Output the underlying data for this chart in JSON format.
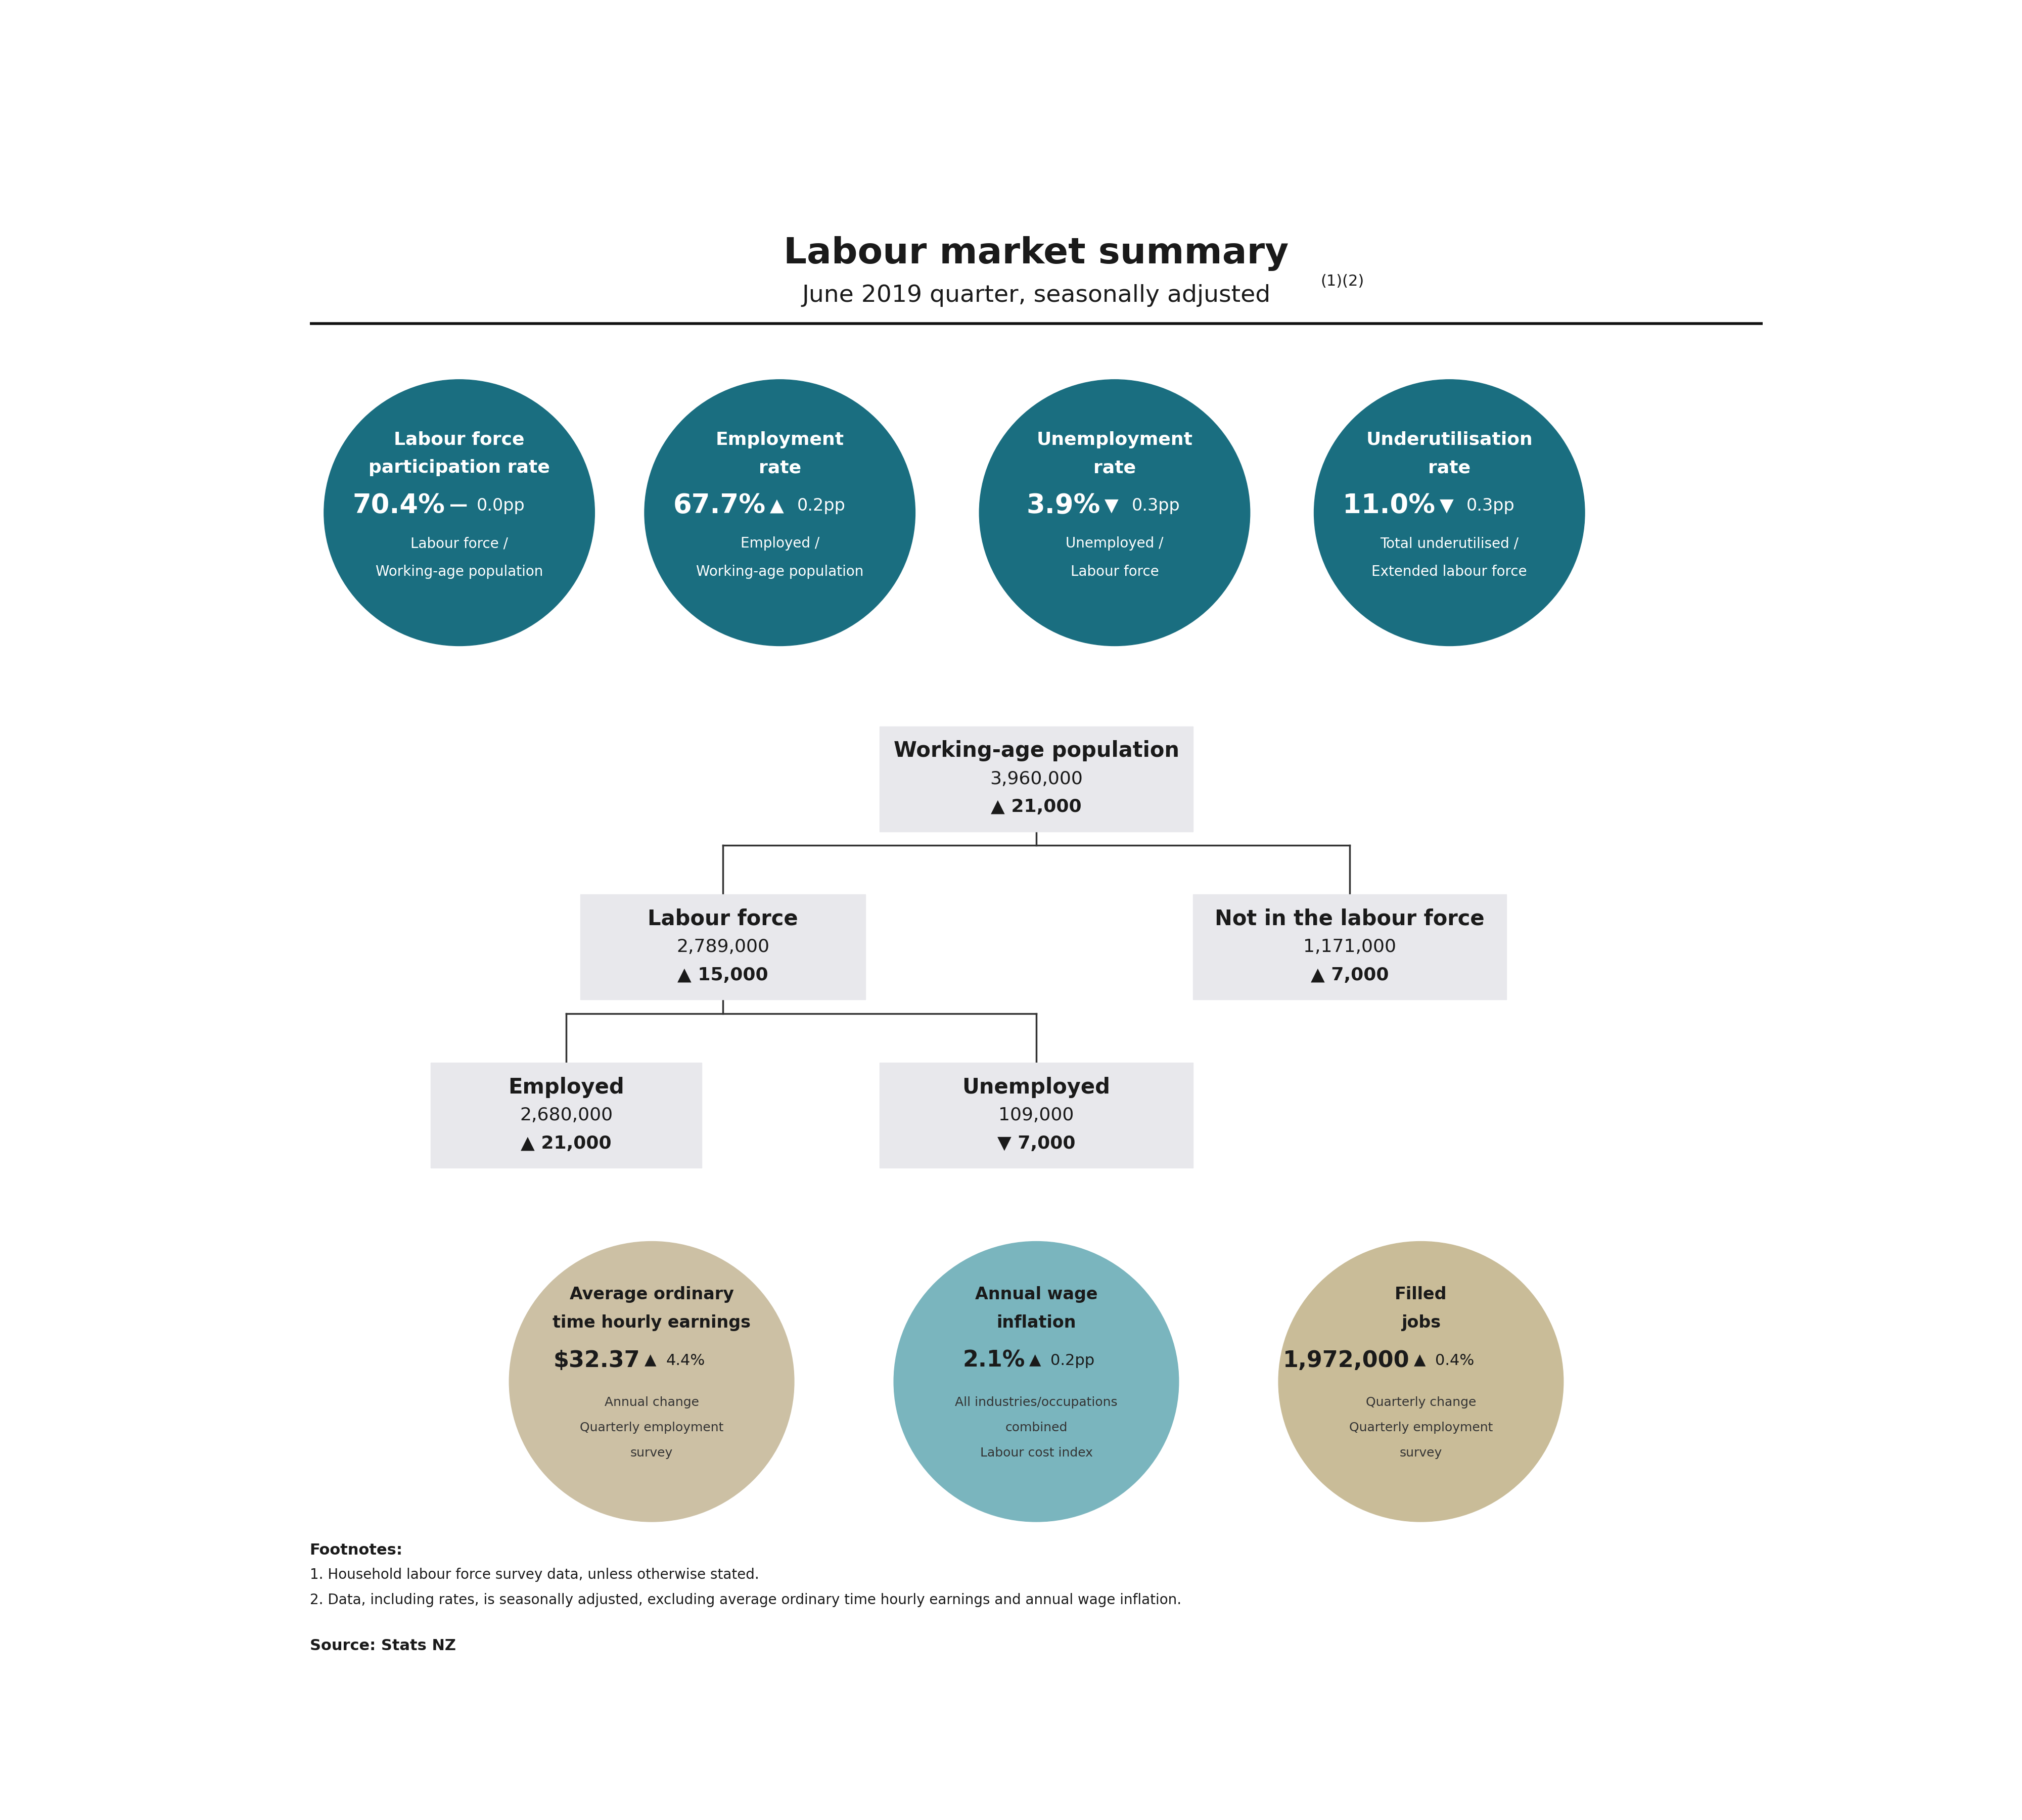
{
  "title": "Labour market summary",
  "subtitle": "June 2019 quarter, seasonally adjusted",
  "subtitle_sup": "(1)(2)",
  "bg_color": "#ffffff",
  "teal_color": "#1a6e80",
  "box_color": "#e8e8ec",
  "line_color": "#111111",
  "text_dark": "#1a1a1a",
  "footnote_bold": "Footnotes:",
  "footnotes": [
    "1. Household labour force survey data, unless otherwise stated.",
    "2. Data, including rates, is seasonally adjusted, excluding average ordinary time hourly earnings and annual wage inflation."
  ],
  "source": "Source: Stats NZ",
  "circles": [
    {
      "title_line1": "Labour force",
      "title_line2": "participation rate",
      "rate": "70.4%",
      "change_symbol": "—",
      "change_value": "0.0pp",
      "sub1": "Labour force /",
      "sub2": "Working-age population"
    },
    {
      "title_line1": "Employment",
      "title_line2": "rate",
      "rate": "67.7%",
      "change_symbol": "▲",
      "change_value": "0.2pp",
      "sub1": "Employed /",
      "sub2": "Working-age population"
    },
    {
      "title_line1": "Unemployment",
      "title_line2": "rate",
      "rate": "3.9%",
      "change_symbol": "▼",
      "change_value": "0.3pp",
      "sub1": "Unemployed /",
      "sub2": "Labour force"
    },
    {
      "title_line1": "Underutilisation",
      "title_line2": "rate",
      "rate": "11.0%",
      "change_symbol": "▼",
      "change_value": "0.3pp",
      "sub1": "Total underutilised /",
      "sub2": "Extended labour force"
    }
  ],
  "working_age_label": "Working-age population",
  "working_age_value": "3,960,000",
  "working_age_sym": "▲",
  "working_age_change": "21,000",
  "labour_force_label": "Labour force",
  "labour_force_value": "2,789,000",
  "labour_force_sym": "▲",
  "labour_force_change": "15,000",
  "not_lf_label": "Not in the labour force",
  "not_lf_value": "1,171,000",
  "not_lf_sym": "▲",
  "not_lf_change": "7,000",
  "employed_label": "Employed",
  "employed_value": "2,680,000",
  "employed_sym": "▲",
  "employed_change": "21,000",
  "unemployed_label": "Unemployed",
  "unemployed_value": "109,000",
  "unemployed_sym": "▼",
  "unemployed_change": "7,000",
  "bottom_circles": [
    {
      "title_line1": "Average ordinary",
      "title_line2": "time hourly earnings",
      "rate": "$32.37",
      "change_sym": "▲",
      "change_val": "4.4%",
      "sub1": "Annual change",
      "sub2": "Quarterly employment",
      "sub3": "survey",
      "color": "#ccc0a4"
    },
    {
      "title_line1": "Annual wage",
      "title_line2": "inflation",
      "rate": "2.1%",
      "change_sym": "▲",
      "change_val": "0.2pp",
      "sub1": "All industries/occupations",
      "sub2": "combined",
      "sub3": "Labour cost index",
      "color": "#7ab5be"
    },
    {
      "title_line1": "Filled",
      "title_line2": "jobs",
      "rate": "1,972,000",
      "change_sym": "▲",
      "change_val": "0.4%",
      "sub1": "Quarterly change",
      "sub2": "Quarterly employment",
      "sub3": "survey",
      "color": "#c9bc98"
    }
  ]
}
